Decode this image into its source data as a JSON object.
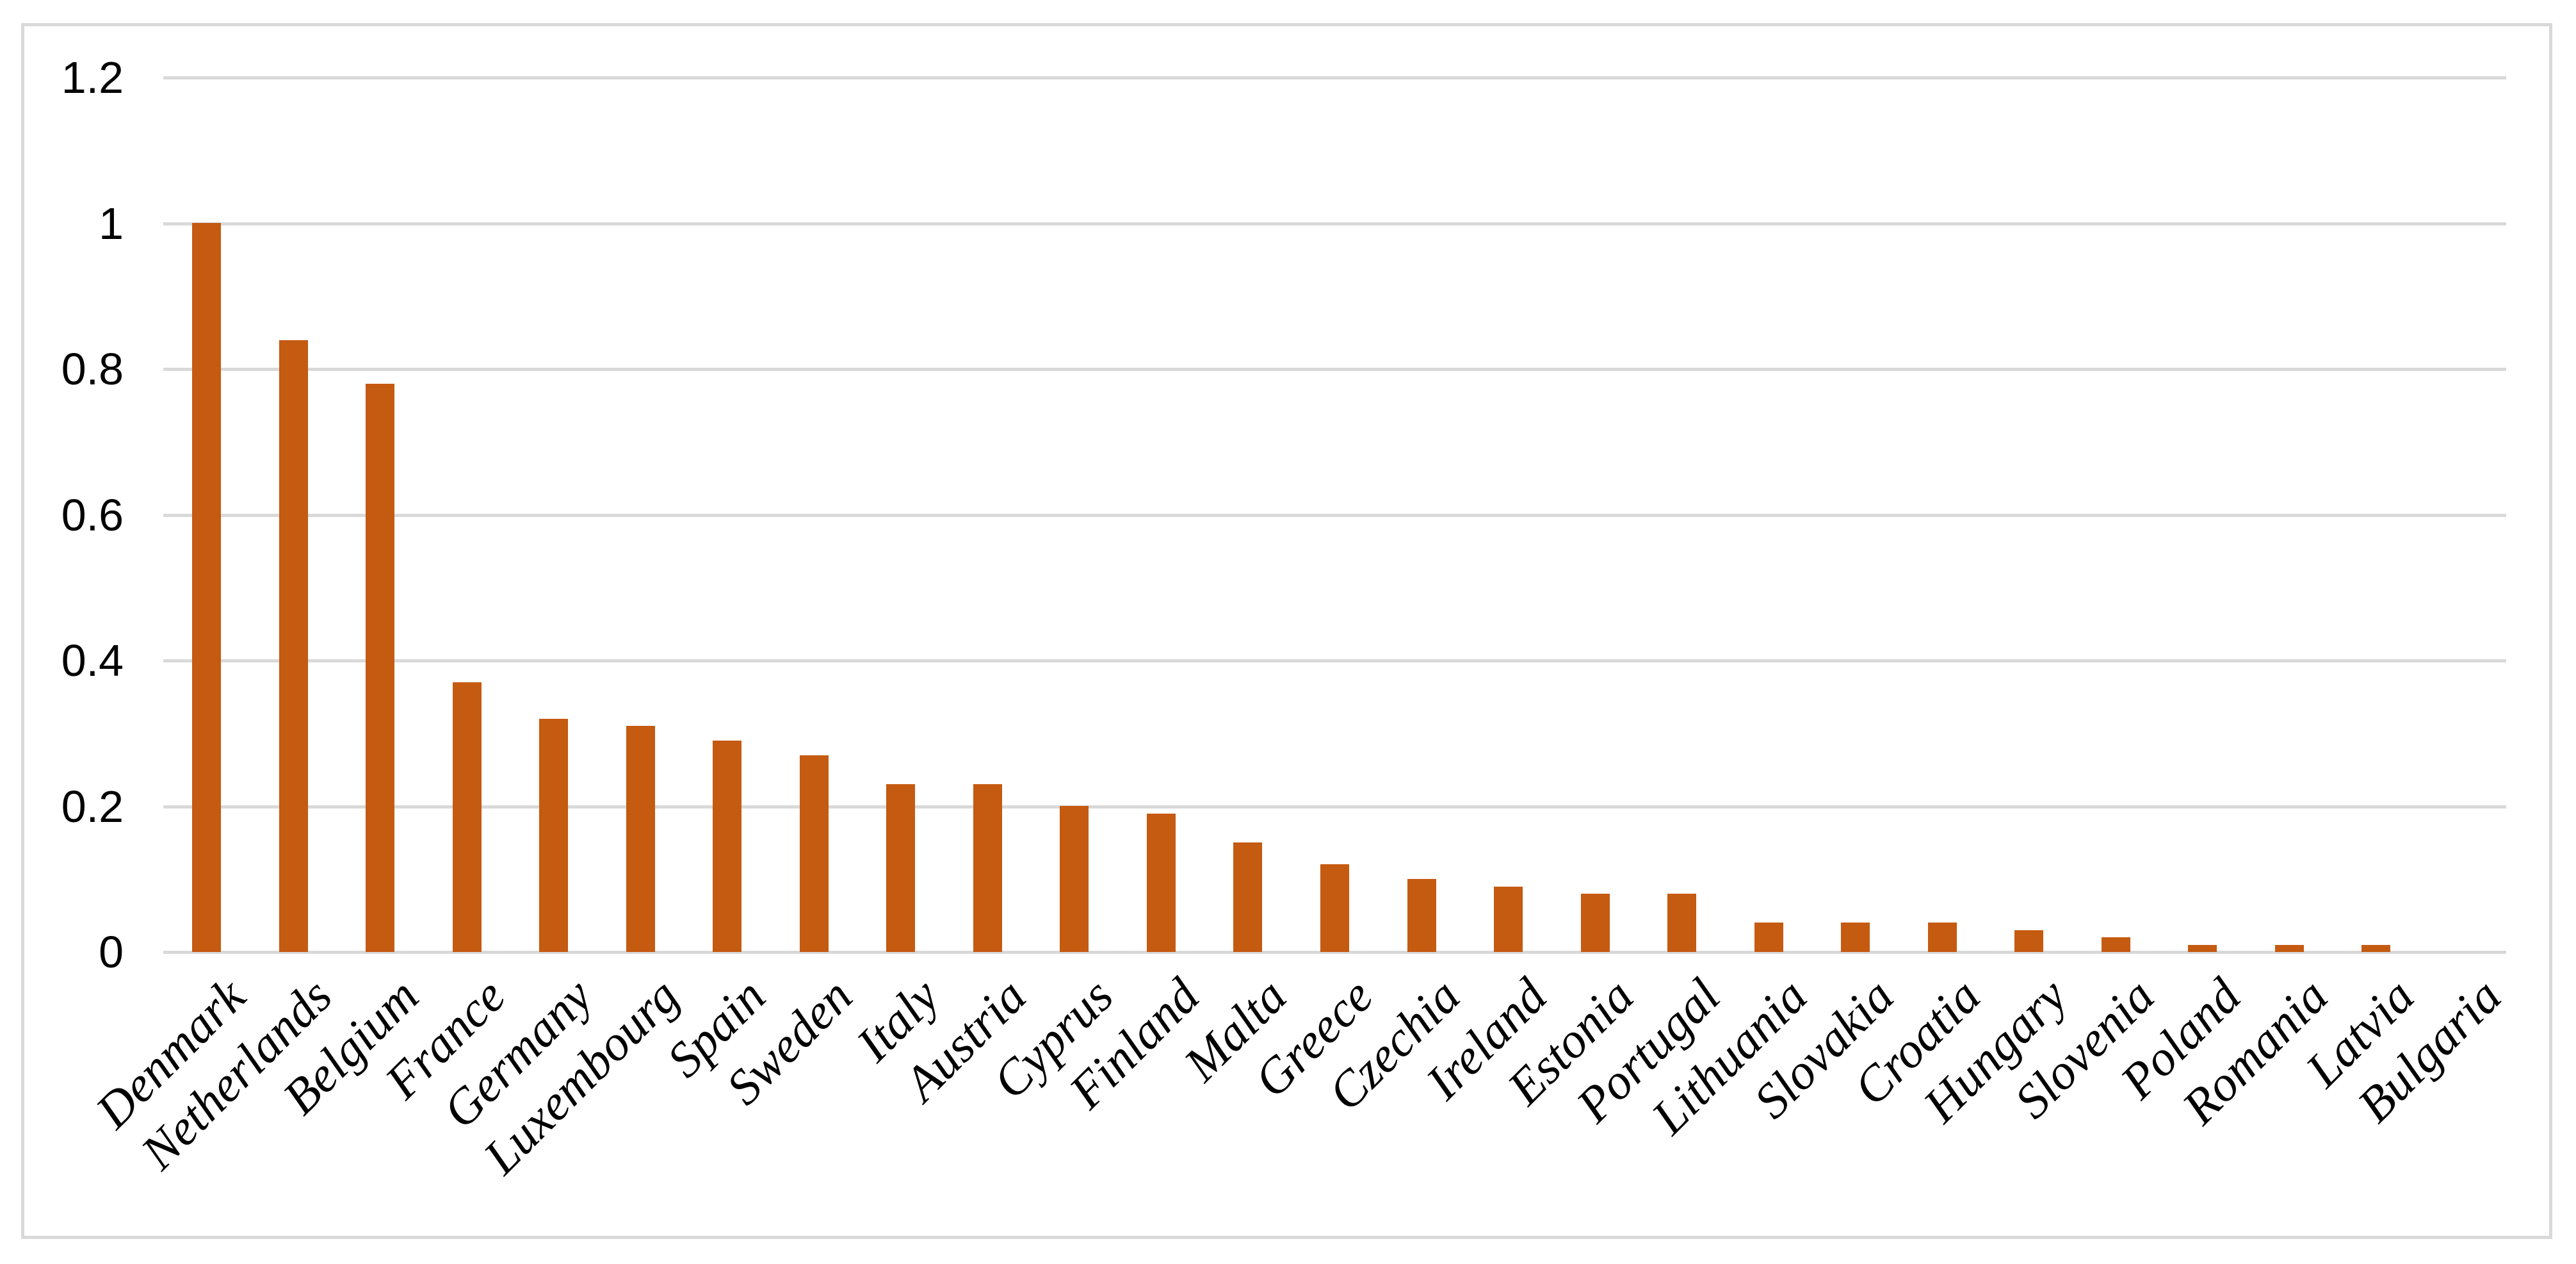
{
  "figure": {
    "background_color": "#FFFFFF",
    "frame_border_color": "#D9D9D9"
  },
  "chart_data": {
    "type": "bar",
    "title": "",
    "xlabel": "",
    "ylabel": "",
    "categories": [
      "Denmark",
      "Netherlands",
      "Belgium",
      "France",
      "Germany",
      "Luxembourg",
      "Spain",
      "Sweden",
      "Italy",
      "Austria",
      "Cyprus",
      "Finland",
      "Malta",
      "Greece",
      "Czechia",
      "Ireland",
      "Estonia",
      "Portugal",
      "Lithuania",
      "Slovakia",
      "Croatia",
      "Hungary",
      "Slovenia",
      "Poland",
      "Romania",
      "Latvia",
      "Bulgaria"
    ],
    "values": [
      1.0,
      0.84,
      0.78,
      0.37,
      0.32,
      0.31,
      0.29,
      0.27,
      0.23,
      0.23,
      0.2,
      0.19,
      0.15,
      0.12,
      0.1,
      0.09,
      0.08,
      0.08,
      0.04,
      0.04,
      0.04,
      0.03,
      0.02,
      0.01,
      0.01,
      0.01,
      0.0
    ],
    "y_ticks": [
      "0",
      "0.2",
      "0.4",
      "0.6",
      "0.8",
      "1",
      "1.2"
    ],
    "y_tick_values": [
      0,
      0.2,
      0.4,
      0.6,
      0.8,
      1,
      1.2
    ],
    "ylim": [
      0,
      1.2
    ],
    "grid": "horizontal",
    "legend": "none",
    "bar_color": "#C55A11",
    "gridline_color": "#D9D9D9",
    "x_label_rotation_deg": 45
  }
}
